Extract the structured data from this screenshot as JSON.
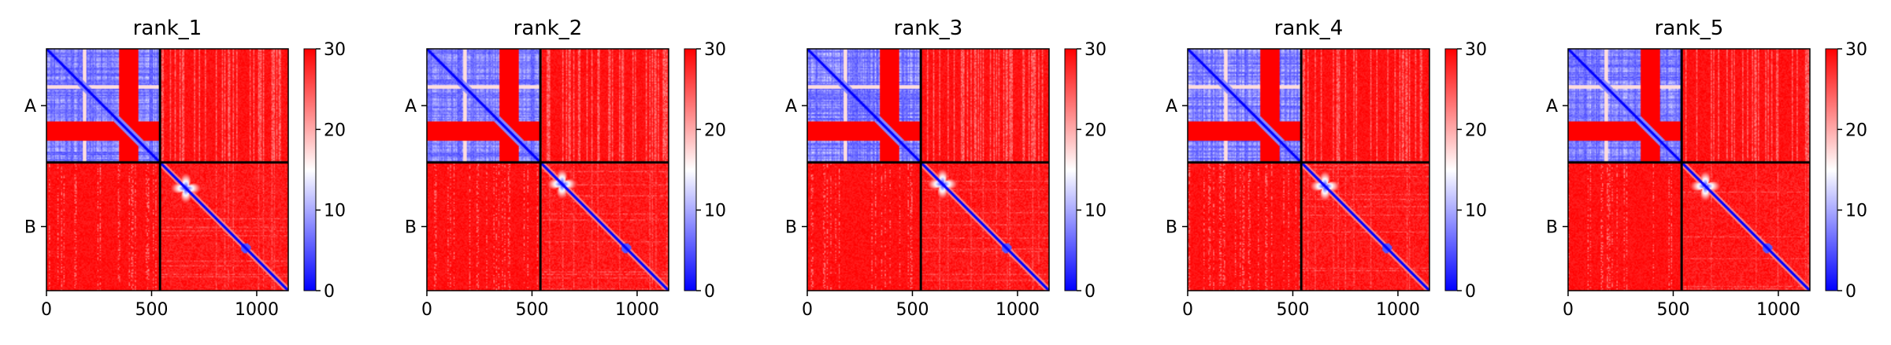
{
  "figure": {
    "colormap": [
      "#0000ff",
      "#ffffff",
      "#ff0000"
    ],
    "divider_color": "#000000"
  },
  "chart_data": [
    {
      "type": "heatmap",
      "title": "rank_1",
      "x_ticks": [
        0,
        500,
        1000
      ],
      "x_tick_labels": [
        "0",
        "500",
        "1000"
      ],
      "x_range": [
        0,
        1150
      ],
      "y_range": [
        0,
        1150
      ],
      "chain_boundaries": [
        0,
        540,
        1150
      ],
      "chain_labels": [
        "A",
        "B"
      ],
      "colorbar": {
        "min": 0,
        "max": 30,
        "ticks": [
          0,
          10,
          20,
          30
        ],
        "tick_labels": [
          "0",
          "10",
          "20",
          "30"
        ]
      },
      "blob_center": 660,
      "dip_position": 945
    },
    {
      "type": "heatmap",
      "title": "rank_2",
      "x_ticks": [
        0,
        500,
        1000
      ],
      "x_tick_labels": [
        "0",
        "500",
        "1000"
      ],
      "x_range": [
        0,
        1150
      ],
      "y_range": [
        0,
        1150
      ],
      "chain_boundaries": [
        0,
        540,
        1150
      ],
      "chain_labels": [
        "A",
        "B"
      ],
      "colorbar": {
        "min": 0,
        "max": 30,
        "ticks": [
          0,
          10,
          20,
          30
        ],
        "tick_labels": [
          "0",
          "10",
          "20",
          "30"
        ]
      },
      "blob_center": 640,
      "dip_position": 945
    },
    {
      "type": "heatmap",
      "title": "rank_3",
      "x_ticks": [
        0,
        500,
        1000
      ],
      "x_tick_labels": [
        "0",
        "500",
        "1000"
      ],
      "x_range": [
        0,
        1150
      ],
      "y_range": [
        0,
        1150
      ],
      "chain_boundaries": [
        0,
        540,
        1150
      ],
      "chain_labels": [
        "A",
        "B"
      ],
      "colorbar": {
        "min": 0,
        "max": 30,
        "ticks": [
          0,
          10,
          20,
          30
        ],
        "tick_labels": [
          "0",
          "10",
          "20",
          "30"
        ]
      },
      "blob_center": 640,
      "dip_position": 945
    },
    {
      "type": "heatmap",
      "title": "rank_4",
      "x_ticks": [
        0,
        500,
        1000
      ],
      "x_tick_labels": [
        "0",
        "500",
        "1000"
      ],
      "x_range": [
        0,
        1150
      ],
      "y_range": [
        0,
        1150
      ],
      "chain_boundaries": [
        0,
        540,
        1150
      ],
      "chain_labels": [
        "A",
        "B"
      ],
      "colorbar": {
        "min": 0,
        "max": 30,
        "ticks": [
          0,
          10,
          20,
          30
        ],
        "tick_labels": [
          "0",
          "10",
          "20",
          "30"
        ]
      },
      "blob_center": 650,
      "dip_position": 945
    },
    {
      "type": "heatmap",
      "title": "rank_5",
      "x_ticks": [
        0,
        500,
        1000
      ],
      "x_tick_labels": [
        "0",
        "500",
        "1000"
      ],
      "x_range": [
        0,
        1150
      ],
      "y_range": [
        0,
        1150
      ],
      "chain_boundaries": [
        0,
        540,
        1150
      ],
      "chain_labels": [
        "A",
        "B"
      ],
      "colorbar": {
        "min": 0,
        "max": 30,
        "ticks": [
          0,
          10,
          20,
          30
        ],
        "tick_labels": [
          "0",
          "10",
          "20",
          "30"
        ]
      },
      "blob_center": 650,
      "dip_position": 945
    }
  ]
}
